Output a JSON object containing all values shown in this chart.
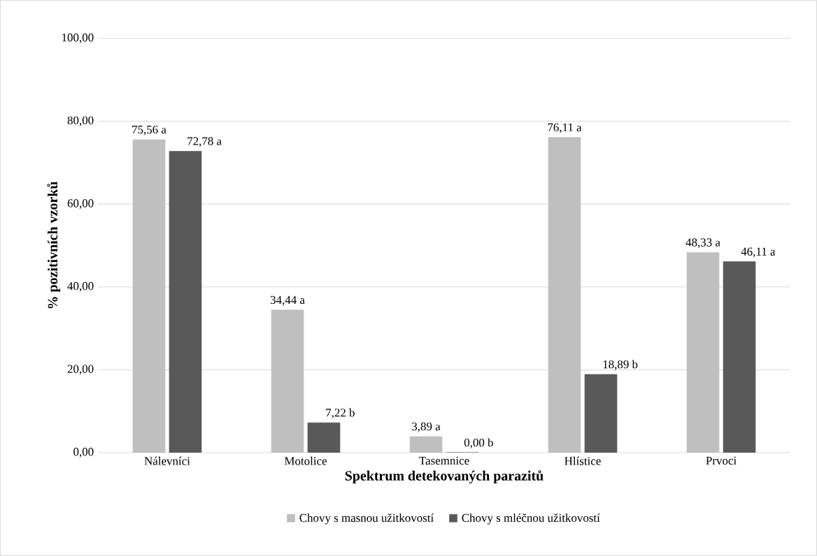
{
  "chart_data": {
    "type": "bar",
    "xlabel": "Spektrum detekovaných parazitů",
    "ylabel": "% pozitivních vzorků",
    "categories": [
      "Nálevníci",
      "Motolice",
      "Tasemnice",
      "Hlístice",
      "Prvoci"
    ],
    "series": [
      {
        "name": "Chovy s masnou užitkovostí",
        "color": "#bfbfbf",
        "values": [
          75.56,
          34.44,
          3.89,
          76.11,
          48.33
        ],
        "value_labels": [
          "75,56 a",
          "34,44 a",
          "3,89 a",
          "76,11 a",
          "48,33 a"
        ]
      },
      {
        "name": "Chovy s mléčnou užitkovostí",
        "color": "#595959",
        "values": [
          72.78,
          7.22,
          0.0,
          18.89,
          46.11
        ],
        "value_labels": [
          "72,78 a",
          "7,22 b",
          "0,00 b",
          "18,89 b",
          "46,11 a"
        ]
      }
    ],
    "ylim": [
      0,
      100
    ],
    "yticks": [
      {
        "value": 0,
        "label": "0,00"
      },
      {
        "value": 20,
        "label": "20,00"
      },
      {
        "value": 40,
        "label": "40,00"
      },
      {
        "value": 60,
        "label": "60,00"
      },
      {
        "value": 80,
        "label": "80,00"
      },
      {
        "value": 100,
        "label": "100,00"
      }
    ],
    "grid": "y",
    "legend": "bottom"
  }
}
